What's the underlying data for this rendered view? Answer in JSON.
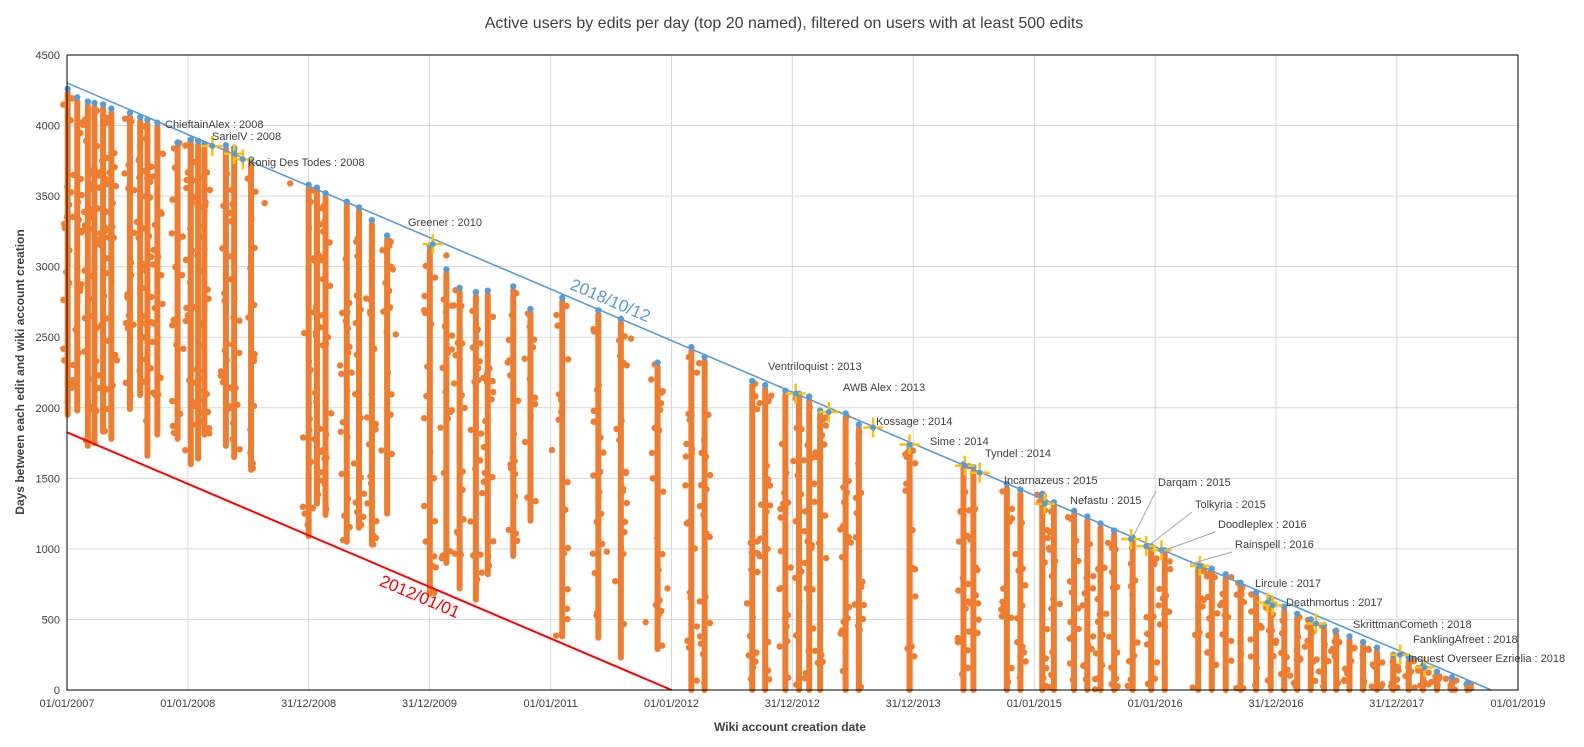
{
  "chart_data": {
    "type": "scatter",
    "title": "Active users by edits per day (top 20 named), filtered on users with at least 500 edits",
    "xlabel": "Wiki account creation date",
    "ylabel": "Days between each edit and wiki account creation",
    "xlim": [
      "2007-01-01",
      "2019-01-01"
    ],
    "ylim": [
      0,
      4500
    ],
    "y_ticks": [
      0,
      500,
      1000,
      1500,
      2000,
      2500,
      3000,
      3500,
      4000,
      4500
    ],
    "x_ticks": [
      {
        "date": "2007-01-01",
        "label": "01/01/2007"
      },
      {
        "date": "2008-01-01",
        "label": "01/01/2008"
      },
      {
        "date": "2008-12-31",
        "label": "31/12/2008"
      },
      {
        "date": "2009-12-31",
        "label": "31/12/2009"
      },
      {
        "date": "2011-01-01",
        "label": "01/01/2011"
      },
      {
        "date": "2012-01-01",
        "label": "01/01/2012"
      },
      {
        "date": "2012-12-31",
        "label": "31/12/2012"
      },
      {
        "date": "2013-12-31",
        "label": "31/12/2013"
      },
      {
        "date": "2015-01-01",
        "label": "01/01/2015"
      },
      {
        "date": "2016-01-01",
        "label": "01/01/2016"
      },
      {
        "date": "2016-12-31",
        "label": "31/12/2016"
      },
      {
        "date": "2017-12-31",
        "label": "31/12/2017"
      },
      {
        "date": "2019-01-01",
        "label": "01/01/2019"
      }
    ],
    "grid": true,
    "colors": {
      "edits": "#ED7D31",
      "last_edit": "#5B9BD5",
      "named_marker": "#FFC000",
      "line_2018": "#5B9BD5",
      "line_2012": "#FF0000"
    },
    "reference_lines": [
      {
        "label": "2018/10/12",
        "from": {
          "x": "2007-01-01",
          "y": 4302
        },
        "to": {
          "x": "2018-10-12",
          "y": 0
        },
        "color": "#5B9BD5"
      },
      {
        "label": "2012/01/01",
        "from": {
          "x": "2007-01-01",
          "y": 1826
        },
        "to": {
          "x": "2012-01-01",
          "y": 0
        },
        "color": "#FF0000"
      }
    ],
    "columns": [
      {
        "x": "2007-01-03",
        "top": 4260,
        "bottom": 1950
      },
      {
        "x": "2007-02-01",
        "top": 4200,
        "bottom": 1980
      },
      {
        "x": "2007-03-05",
        "top": 4170,
        "bottom": 1730
      },
      {
        "x": "2007-03-25",
        "top": 4160,
        "bottom": 1750
      },
      {
        "x": "2007-04-20",
        "top": 4150,
        "bottom": 1830
      },
      {
        "x": "2007-05-15",
        "top": 4120,
        "bottom": 1780
      },
      {
        "x": "2007-07-10",
        "top": 4090,
        "bottom": 1990
      },
      {
        "x": "2007-08-10",
        "top": 4060,
        "bottom": 2090
      },
      {
        "x": "2007-09-01",
        "top": 4040,
        "bottom": 1660
      },
      {
        "x": "2007-10-01",
        "top": 4020,
        "bottom": 1810
      },
      {
        "x": "2007-12-01",
        "top": 3880,
        "bottom": 1780
      },
      {
        "x": "2008-01-10",
        "top": 3900,
        "bottom": 1600
      },
      {
        "x": "2008-02-01",
        "top": 3890,
        "bottom": 1640
      },
      {
        "x": "2008-02-20",
        "top": 3870,
        "bottom": 1810
      },
      {
        "x": "2008-04-25",
        "top": 3860,
        "bottom": 1730
      },
      {
        "x": "2008-05-20",
        "top": 3840,
        "bottom": 1650
      },
      {
        "x": "2008-07-10",
        "top": 3760,
        "bottom": 1560
      },
      {
        "x": "2008-12-31",
        "top": 3580,
        "bottom": 1090
      },
      {
        "x": "2009-01-25",
        "top": 3560,
        "bottom": 1320
      },
      {
        "x": "2009-02-20",
        "top": 3520,
        "bottom": 1240
      },
      {
        "x": "2009-04-25",
        "top": 3460,
        "bottom": 1050
      },
      {
        "x": "2009-06-01",
        "top": 3420,
        "bottom": 1150
      },
      {
        "x": "2009-07-10",
        "top": 3330,
        "bottom": 1030
      },
      {
        "x": "2009-08-25",
        "top": 3220,
        "bottom": 1250
      },
      {
        "x": "2010-01-01",
        "top": 3150,
        "bottom": 680
      },
      {
        "x": "2010-02-20",
        "top": 2980,
        "bottom": 900
      },
      {
        "x": "2010-04-01",
        "top": 2850,
        "bottom": 720
      },
      {
        "x": "2010-05-20",
        "top": 2820,
        "bottom": 640
      },
      {
        "x": "2010-06-25",
        "top": 2830,
        "bottom": 820
      },
      {
        "x": "2010-09-10",
        "top": 2860,
        "bottom": 950
      },
      {
        "x": "2010-11-01",
        "top": 2700,
        "bottom": 1200
      },
      {
        "x": "2011-02-05",
        "top": 2780,
        "bottom": 380
      },
      {
        "x": "2011-05-25",
        "top": 2690,
        "bottom": 370
      },
      {
        "x": "2011-08-01",
        "top": 2630,
        "bottom": 230
      },
      {
        "x": "2011-11-20",
        "top": 2320,
        "bottom": 290
      },
      {
        "x": "2012-03-01",
        "top": 2430,
        "bottom": 0
      },
      {
        "x": "2012-04-10",
        "top": 2360,
        "bottom": 0
      },
      {
        "x": "2012-09-01",
        "top": 2190,
        "bottom": 0
      },
      {
        "x": "2012-10-10",
        "top": 2160,
        "bottom": 0
      },
      {
        "x": "2012-12-10",
        "top": 2120,
        "bottom": 0
      },
      {
        "x": "2013-01-20",
        "top": 2100,
        "bottom": 0
      },
      {
        "x": "2013-02-20",
        "top": 2080,
        "bottom": 0
      },
      {
        "x": "2013-03-25",
        "top": 1980,
        "bottom": 0
      },
      {
        "x": "2013-06-10",
        "top": 1960,
        "bottom": 0
      },
      {
        "x": "2013-07-20",
        "top": 1880,
        "bottom": 0
      },
      {
        "x": "2013-12-20",
        "top": 1720,
        "bottom": 0
      },
      {
        "x": "2014-06-01",
        "top": 1600,
        "bottom": 0
      },
      {
        "x": "2014-07-01",
        "top": 1580,
        "bottom": 0
      },
      {
        "x": "2014-10-10",
        "top": 1460,
        "bottom": 0
      },
      {
        "x": "2014-11-20",
        "top": 1420,
        "bottom": 0
      },
      {
        "x": "2015-01-25",
        "top": 1390,
        "bottom": 0
      },
      {
        "x": "2015-03-01",
        "top": 1330,
        "bottom": 0
      },
      {
        "x": "2015-05-01",
        "top": 1270,
        "bottom": 0
      },
      {
        "x": "2015-06-10",
        "top": 1230,
        "bottom": 0
      },
      {
        "x": "2015-07-20",
        "top": 1180,
        "bottom": 0
      },
      {
        "x": "2015-08-30",
        "top": 1130,
        "bottom": 0
      },
      {
        "x": "2015-10-25",
        "top": 1080,
        "bottom": 0
      },
      {
        "x": "2015-12-20",
        "top": 1020,
        "bottom": 0
      },
      {
        "x": "2016-01-30",
        "top": 990,
        "bottom": 0
      },
      {
        "x": "2016-05-10",
        "top": 880,
        "bottom": 0
      },
      {
        "x": "2016-06-20",
        "top": 860,
        "bottom": 0
      },
      {
        "x": "2016-08-01",
        "top": 820,
        "bottom": 0
      },
      {
        "x": "2016-09-15",
        "top": 760,
        "bottom": 0
      },
      {
        "x": "2016-11-01",
        "top": 690,
        "bottom": 0
      },
      {
        "x": "2016-12-15",
        "top": 640,
        "bottom": 0
      },
      {
        "x": "2017-01-25",
        "top": 590,
        "bottom": 0
      },
      {
        "x": "2017-03-05",
        "top": 540,
        "bottom": 0
      },
      {
        "x": "2017-04-15",
        "top": 500,
        "bottom": 0
      },
      {
        "x": "2017-05-25",
        "top": 460,
        "bottom": 0
      },
      {
        "x": "2017-07-01",
        "top": 420,
        "bottom": 0
      },
      {
        "x": "2017-08-10",
        "top": 380,
        "bottom": 0
      },
      {
        "x": "2017-09-20",
        "top": 340,
        "bottom": 0
      },
      {
        "x": "2017-11-01",
        "top": 300,
        "bottom": 0
      },
      {
        "x": "2017-12-20",
        "top": 250,
        "bottom": 0
      },
      {
        "x": "2018-02-05",
        "top": 230,
        "bottom": 0
      },
      {
        "x": "2018-03-20",
        "top": 170,
        "bottom": 0
      },
      {
        "x": "2018-05-01",
        "top": 130,
        "bottom": 0
      },
      {
        "x": "2018-06-15",
        "top": 90,
        "bottom": 0
      },
      {
        "x": "2018-08-01",
        "top": 50,
        "bottom": 0
      }
    ],
    "scattered_points": [
      {
        "x": "2009-04-05",
        "y": 2300
      },
      {
        "x": "2009-09-20",
        "y": 2520
      },
      {
        "x": "2010-02-20",
        "y": 3080
      },
      {
        "x": "2010-09-01",
        "y": 2230
      },
      {
        "x": "2011-01-05",
        "y": 1700
      },
      {
        "x": "2011-05-10",
        "y": 1520
      },
      {
        "x": "2011-06-20",
        "y": 980
      },
      {
        "x": "2011-09-01",
        "y": 2490
      },
      {
        "x": "2011-11-01",
        "y": 2200
      },
      {
        "x": "2011-12-01",
        "y": 560
      },
      {
        "x": "2011-10-15",
        "y": 480
      },
      {
        "x": "2011-12-20",
        "y": 720
      },
      {
        "x": "2008-11-05",
        "y": 3590
      },
      {
        "x": "2008-08-20",
        "y": 3450
      },
      {
        "x": "2007-05-01",
        "y": 3770
      }
    ],
    "named_users": [
      {
        "label": "ChieftainAlex : 2008",
        "x": "2008-03-15",
        "y": 3855
      },
      {
        "label": "SarielV : 2008",
        "x": "2008-05-20",
        "y": 3800
      },
      {
        "label": "Konig Des Todes : 2008",
        "x": "2008-06-15",
        "y": 3760
      },
      {
        "label": "Greener : 2010",
        "x": "2010-01-10",
        "y": 3160
      },
      {
        "label": "Ventriloquist : 2013",
        "x": "2013-01-10",
        "y": 2100
      },
      {
        "label": "AWB Alex : 2013",
        "x": "2013-04-20",
        "y": 1970
      },
      {
        "label": "Kossage : 2014",
        "x": "2013-09-01",
        "y": 1860
      },
      {
        "label": "Sime : 2014",
        "x": "2013-12-20",
        "y": 1740
      },
      {
        "label": "Tyndel : 2014",
        "x": "2014-06-05",
        "y": 1590
      },
      {
        "label": "Incarnazeus : 2015",
        "x": "2014-07-20",
        "y": 1540
      },
      {
        "label": "Nefastu : 2015",
        "x": "2015-02-01",
        "y": 1320
      },
      {
        "label": "Darqam : 2015",
        "x": "2015-10-20",
        "y": 1070
      },
      {
        "label": "Tolkyria : 2015",
        "x": "2015-12-05",
        "y": 1020
      },
      {
        "label": "Doodleplex : 2016",
        "x": "2016-01-20",
        "y": 990
      },
      {
        "label": "Rainspell : 2016",
        "x": "2016-05-15",
        "y": 880
      },
      {
        "label": "Lircule : 2017",
        "x": "2016-12-05",
        "y": 620
      },
      {
        "label": "Deathmortus : 2017",
        "x": "2016-12-20",
        "y": 600
      },
      {
        "label": "SkrittmanCometh : 2018",
        "x": "2017-05-01",
        "y": 470
      },
      {
        "label": "FanklingAfreet : 2018",
        "x": "2018-01-10",
        "y": 250
      },
      {
        "label": "Inquest Overseer Ezrielia : 2018",
        "x": "2018-03-25",
        "y": 160
      }
    ]
  }
}
